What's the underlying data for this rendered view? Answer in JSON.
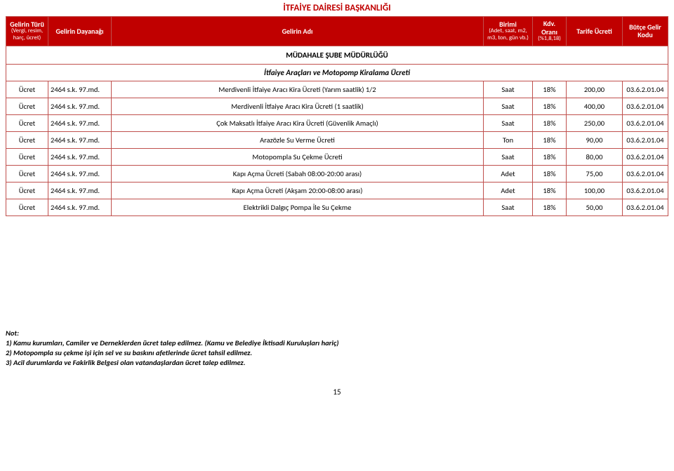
{
  "title": "İTFAİYE DAİRESİ BAŞKANLIĞI",
  "headers": {
    "turu": "Gelirin Türü",
    "turu_sub": "(Vergi, resim, harç, ücret)",
    "dayanak": "Gelirin Dayanağı",
    "adi": "Gelirin Adı",
    "birim": "Birimi",
    "birim_sub": "(Adet, saat, m2, m3, ton, gün vb.)",
    "kdv": "Kdv. Oranı",
    "kdv_sub": "(%1,8,18)",
    "tarife": "Tarife Ücreti",
    "kod": "Bütçe Gelir Kodu"
  },
  "section1": "MÜDAHALE ŞUBE MÜDÜRLÜĞÜ",
  "section2": "İtfaiye Araçları ve Motopomp Kiralama Ücreti",
  "rows": [
    {
      "turu": "Ücret",
      "dayanak": "2464 s.k. 97.md.",
      "adi": "Merdivenli İtfaiye Aracı Kira Ücreti (Yarım saatlik) 1/2",
      "birim": "Saat",
      "kdv": "18%",
      "tarife": "200,00",
      "kod": "03.6.2.01.04"
    },
    {
      "turu": "Ücret",
      "dayanak": "2464 s.k. 97.md.",
      "adi": "Merdivenli İtfaiye Aracı Kira Ücreti (1 saatlik)",
      "birim": "Saat",
      "kdv": "18%",
      "tarife": "400,00",
      "kod": "03.6.2.01.04"
    },
    {
      "turu": "Ücret",
      "dayanak": "2464 s.k. 97.md.",
      "adi": "Çok Maksatlı İtfaiye Aracı  Kira Ücreti (Güvenlik Amaçlı)",
      "birim": "Saat",
      "kdv": "18%",
      "tarife": "250,00",
      "kod": "03.6.2.01.04"
    },
    {
      "turu": "Ücret",
      "dayanak": "2464 s.k. 97.md.",
      "adi": "Arazözle Su Verme Ücreti",
      "birim": "Ton",
      "kdv": "18%",
      "tarife": "90,00",
      "kod": "03.6.2.01.04"
    },
    {
      "turu": "Ücret",
      "dayanak": "2464 s.k. 97.md.",
      "adi": "Motopompla Su Çekme Ücreti",
      "birim": "Saat",
      "kdv": "18%",
      "tarife": "80,00",
      "kod": "03.6.2.01.04"
    },
    {
      "turu": "Ücret",
      "dayanak": "2464 s.k. 97.md.",
      "adi": "Kapı Açma Ücreti (Sabah 08:00-20:00 arası)",
      "birim": "Adet",
      "kdv": "18%",
      "tarife": "75,00",
      "kod": "03.6.2.01.04"
    },
    {
      "turu": "Ücret",
      "dayanak": "2464 s.k. 97.md.",
      "adi": "Kapı Açma Ücreti (Akşam 20:00-08:00 arası)",
      "birim": "Adet",
      "kdv": "18%",
      "tarife": "100,00",
      "kod": "03.6.2.01.04"
    },
    {
      "turu": "Ücret",
      "dayanak": "2464 s.k. 97.md.",
      "adi": "Elektrikli Dalgıç Pompa İle Su Çekme",
      "birim": "Saat",
      "kdv": "18%",
      "tarife": "50,00",
      "kod": "03.6.2.01.04"
    }
  ],
  "notes": {
    "heading": "Not:",
    "n1": "1)  Kamu kurumları, Camiler ve Derneklerden ücret talep edilmez. (Kamu ve Belediye İktisadi Kuruluşları hariç)",
    "n2": "2)  Motopompla su çekme işi için sel ve su baskını afetlerinde ücret tahsil edilmez.",
    "n3": "3)  Acil durumlarda ve Fakirlik Belgesi olan vatandaşlardan ücret talep edilmez."
  },
  "page_number": "15",
  "style": {
    "header_bg": "#c00000",
    "header_fg": "#ffffff",
    "border_color": "#c0504d",
    "title_color": "#c00000",
    "body_font_size_pt": 10.5
  }
}
